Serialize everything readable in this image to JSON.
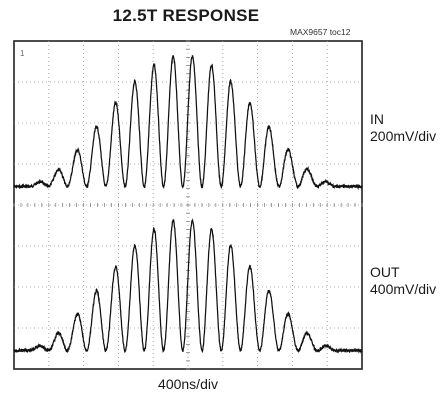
{
  "chart_data": {
    "type": "line",
    "title": "12.5T RESPONSE",
    "figure_id": "MAX9657 toc12",
    "xlabel": "400ns/div",
    "grid": true,
    "x_divisions": 10,
    "y_divisions": 8,
    "channel_marker": "1",
    "series": [
      {
        "name": "IN",
        "scale": "200mV/div",
        "description": "12.5T sine-squared modulated burst",
        "envelope_peak_divisions": 3.2,
        "baseline_divisions_from_top": 3.55,
        "oscillation_cycles_visible": 17,
        "center_time_divisions": 4.85
      },
      {
        "name": "OUT",
        "scale": "400mV/div",
        "description": "12.5T sine-squared modulated burst",
        "envelope_peak_divisions": 3.2,
        "baseline_divisions_from_top": 7.55,
        "oscillation_cycles_visible": 17,
        "center_time_divisions": 4.85
      }
    ]
  }
}
